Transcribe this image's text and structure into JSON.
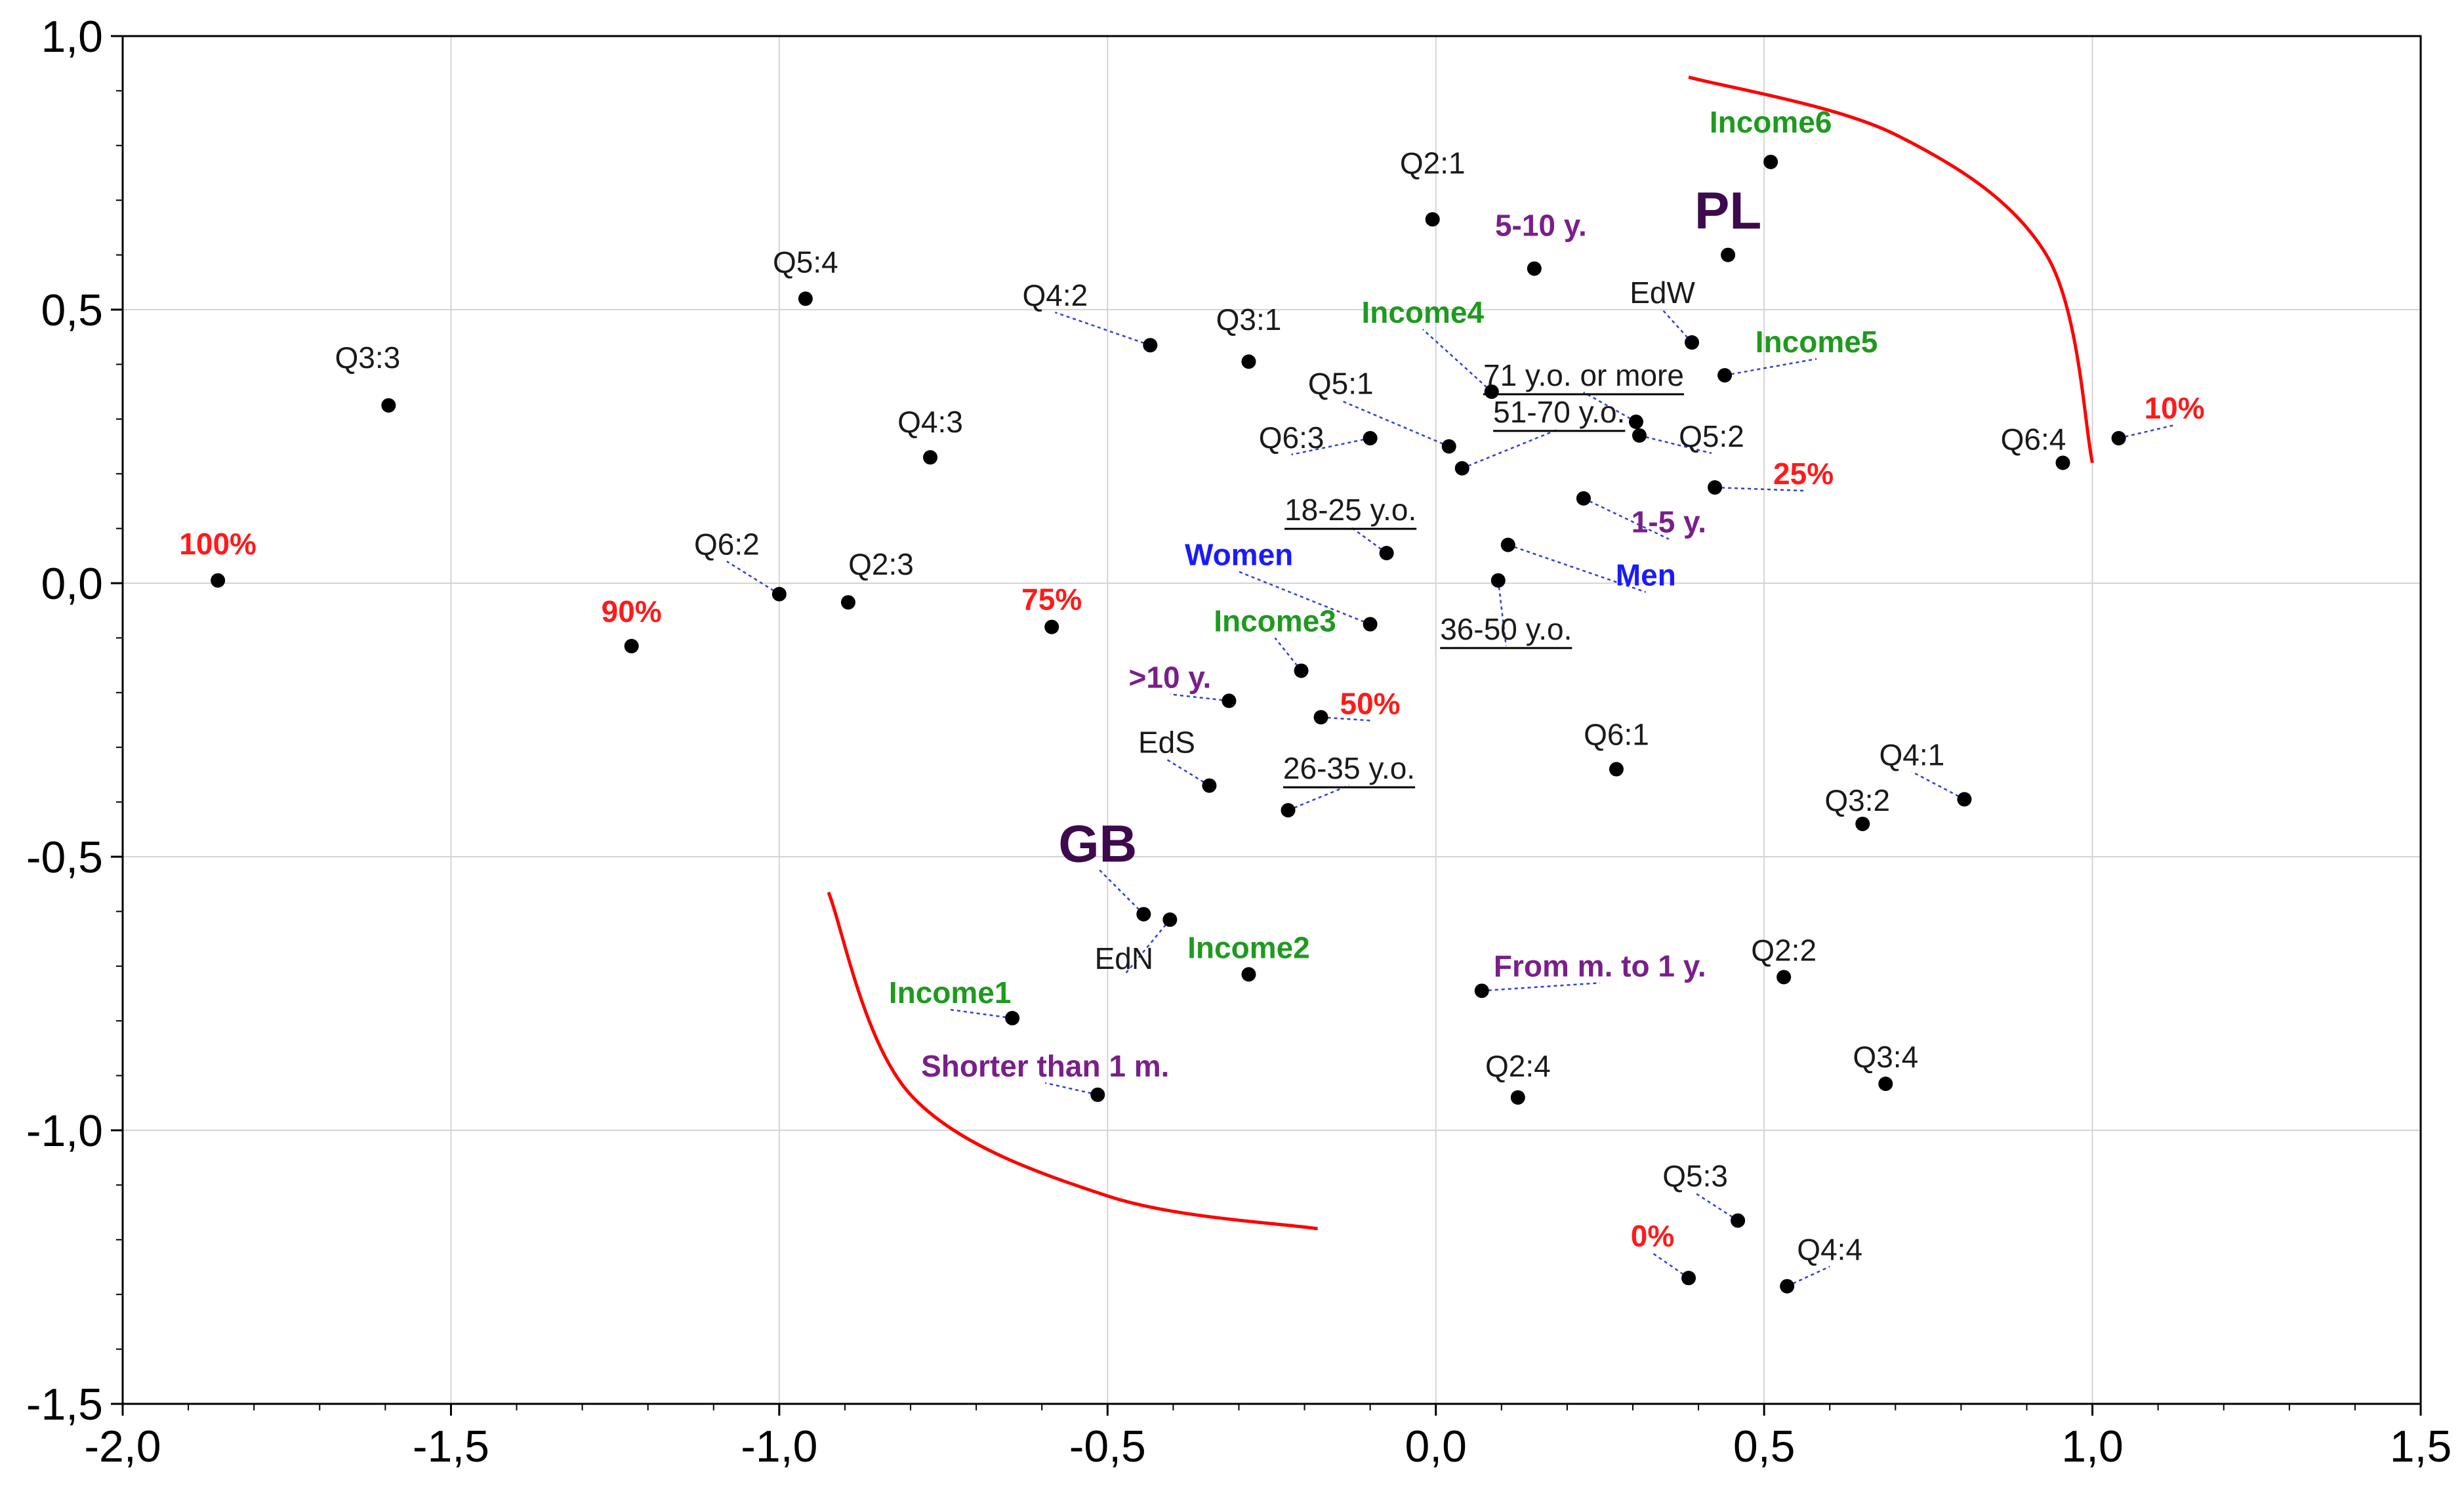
{
  "chart_data": {
    "type": "scatter",
    "title": "",
    "xlabel": "",
    "ylabel": "",
    "xlim": [
      -2.0,
      1.5
    ],
    "ylim": [
      -1.5,
      1.0
    ],
    "grid": true,
    "x_ticks": [
      -2.0,
      -1.5,
      -1.0,
      -0.5,
      0.0,
      0.5,
      1.0,
      1.5
    ],
    "y_ticks": [
      1.0,
      0.5,
      0.0,
      -0.5,
      -1.0,
      -1.5
    ],
    "x_tick_labels": [
      "-2,0",
      "-1,5",
      "-1,0",
      "-0,5",
      "0,0",
      "0,5",
      "1,0",
      "1,5"
    ],
    "y_tick_labels": [
      "1,0",
      "0,5",
      "0,0",
      "-0,5",
      "-1,0",
      "-1,5"
    ],
    "colors": {
      "black": "#1a1a1a",
      "green": "#1e9a1e",
      "purple": "#7a1f8a",
      "red": "#ff1a1a",
      "blue": "#1a1aff",
      "dark": "#3d0a4d",
      "arc": "#ff0000"
    },
    "points": [
      {
        "label": "Income6",
        "x": 0.51,
        "y": 0.77,
        "color": "green",
        "style": "bold"
      },
      {
        "label": "Q2:1",
        "x": -0.005,
        "y": 0.665,
        "color": "black",
        "style": "normal"
      },
      {
        "label": "5-10 y.",
        "x": 0.15,
        "y": 0.575,
        "color": "purple",
        "style": "bold"
      },
      {
        "label": "PL",
        "x": 0.445,
        "y": 0.6,
        "color": "dark",
        "style": "big"
      },
      {
        "label": "EdW",
        "x": 0.39,
        "y": 0.44,
        "color": "black",
        "style": "normal"
      },
      {
        "label": "Income5",
        "x": 0.44,
        "y": 0.38,
        "color": "green",
        "style": "bold"
      },
      {
        "label": "Q5:4",
        "x": -0.96,
        "y": 0.52,
        "color": "black",
        "style": "normal"
      },
      {
        "label": "Q4:2",
        "x": -0.435,
        "y": 0.435,
        "color": "black",
        "style": "normal"
      },
      {
        "label": "Q3:1",
        "x": -0.285,
        "y": 0.405,
        "color": "black",
        "style": "normal"
      },
      {
        "label": "Income4",
        "x": 0.085,
        "y": 0.35,
        "color": "green",
        "style": "bold"
      },
      {
        "label": "71 y.o. or more",
        "x": 0.305,
        "y": 0.295,
        "color": "black",
        "style": "underline"
      },
      {
        "label": "Q3:3",
        "x": -1.595,
        "y": 0.325,
        "color": "black",
        "style": "normal"
      },
      {
        "label": "Q5:1",
        "x": 0.02,
        "y": 0.25,
        "color": "black",
        "style": "normal"
      },
      {
        "label": "Q5:2",
        "x": 0.31,
        "y": 0.27,
        "color": "black",
        "style": "normal"
      },
      {
        "label": "Q6:3",
        "x": -0.1,
        "y": 0.265,
        "color": "black",
        "style": "normal"
      },
      {
        "label": "51-70 y.o.",
        "x": 0.04,
        "y": 0.21,
        "color": "black",
        "style": "underline"
      },
      {
        "label": "Q4:3",
        "x": -0.77,
        "y": 0.23,
        "color": "black",
        "style": "normal"
      },
      {
        "label": "25%",
        "x": 0.425,
        "y": 0.175,
        "color": "red",
        "style": "bold"
      },
      {
        "label": "10%",
        "x": 1.04,
        "y": 0.265,
        "color": "red",
        "style": "bold"
      },
      {
        "label": "Q6:4",
        "x": 0.955,
        "y": 0.22,
        "color": "black",
        "style": "normal"
      },
      {
        "label": "1-5 y.",
        "x": 0.225,
        "y": 0.155,
        "color": "purple",
        "style": "bold"
      },
      {
        "label": "18-25 y.o.",
        "x": -0.075,
        "y": 0.055,
        "color": "black",
        "style": "underline"
      },
      {
        "label": "Men",
        "x": 0.11,
        "y": 0.07,
        "color": "blue",
        "style": "bold"
      },
      {
        "label": "100%",
        "x": -1.855,
        "y": 0.005,
        "color": "red",
        "style": "bold"
      },
      {
        "label": "Q6:2",
        "x": -1.0,
        "y": -0.02,
        "color": "black",
        "style": "normal"
      },
      {
        "label": "Q2:3",
        "x": -0.895,
        "y": -0.035,
        "color": "black",
        "style": "normal"
      },
      {
        "label": "Women",
        "x": -0.1,
        "y": -0.075,
        "color": "blue",
        "style": "bold"
      },
      {
        "label": "36-50 y.o.",
        "x": 0.095,
        "y": 0.005,
        "color": "black",
        "style": "underline"
      },
      {
        "label": "90%",
        "x": -1.225,
        "y": -0.115,
        "color": "red",
        "style": "bold"
      },
      {
        "label": "75%",
        "x": -0.585,
        "y": -0.08,
        "color": "red",
        "style": "bold"
      },
      {
        "label": "Income3",
        "x": -0.205,
        "y": -0.16,
        "color": "green",
        "style": "bold"
      },
      {
        "label": ">10 y.",
        "x": -0.315,
        "y": -0.215,
        "color": "purple",
        "style": "bold"
      },
      {
        "label": "50%",
        "x": -0.175,
        "y": -0.245,
        "color": "red",
        "style": "bold"
      },
      {
        "label": "EdS",
        "x": -0.345,
        "y": -0.37,
        "color": "black",
        "style": "normal"
      },
      {
        "label": "26-35 y.o.",
        "x": -0.225,
        "y": -0.415,
        "color": "black",
        "style": "underline"
      },
      {
        "label": "Q6:1",
        "x": 0.275,
        "y": -0.34,
        "color": "black",
        "style": "normal"
      },
      {
        "label": "Q4:1",
        "x": 0.805,
        "y": -0.395,
        "color": "black",
        "style": "normal"
      },
      {
        "label": "Q3:2",
        "x": 0.65,
        "y": -0.44,
        "color": "black",
        "style": "normal"
      },
      {
        "label": "GB",
        "x": -0.445,
        "y": -0.605,
        "color": "dark",
        "style": "big"
      },
      {
        "label": "EdN",
        "x": -0.405,
        "y": -0.615,
        "color": "black",
        "style": "normal"
      },
      {
        "label": "Income2",
        "x": -0.285,
        "y": -0.715,
        "color": "green",
        "style": "bold"
      },
      {
        "label": "From m. to 1 y.",
        "x": 0.07,
        "y": -0.745,
        "color": "purple",
        "style": "bold"
      },
      {
        "label": "Q2:2",
        "x": 0.53,
        "y": -0.72,
        "color": "black",
        "style": "normal"
      },
      {
        "label": "Income1",
        "x": -0.645,
        "y": -0.795,
        "color": "green",
        "style": "bold"
      },
      {
        "label": "Shorter than 1 m.",
        "x": -0.515,
        "y": -0.935,
        "color": "purple",
        "style": "bold"
      },
      {
        "label": "Q2:4",
        "x": 0.125,
        "y": -0.94,
        "color": "black",
        "style": "normal"
      },
      {
        "label": "Q3:4",
        "x": 0.685,
        "y": -0.915,
        "color": "black",
        "style": "normal"
      },
      {
        "label": "Q5:3",
        "x": 0.46,
        "y": -1.165,
        "color": "black",
        "style": "normal"
      },
      {
        "label": "0%",
        "x": 0.385,
        "y": -1.27,
        "color": "red",
        "style": "bold"
      },
      {
        "label": "Q4:4",
        "x": 0.535,
        "y": -1.285,
        "color": "black",
        "style": "normal"
      }
    ],
    "arcs": [
      {
        "name": "upper-arc",
        "points": [
          [
            0.385,
            0.925
          ],
          [
            0.7,
            0.82
          ],
          [
            0.93,
            0.6
          ],
          [
            1.0,
            0.22
          ]
        ]
      },
      {
        "name": "lower-arc",
        "points": [
          [
            -0.925,
            -0.565
          ],
          [
            -0.8,
            -0.935
          ],
          [
            -0.5,
            -1.12
          ],
          [
            -0.18,
            -1.18
          ]
        ]
      }
    ]
  }
}
